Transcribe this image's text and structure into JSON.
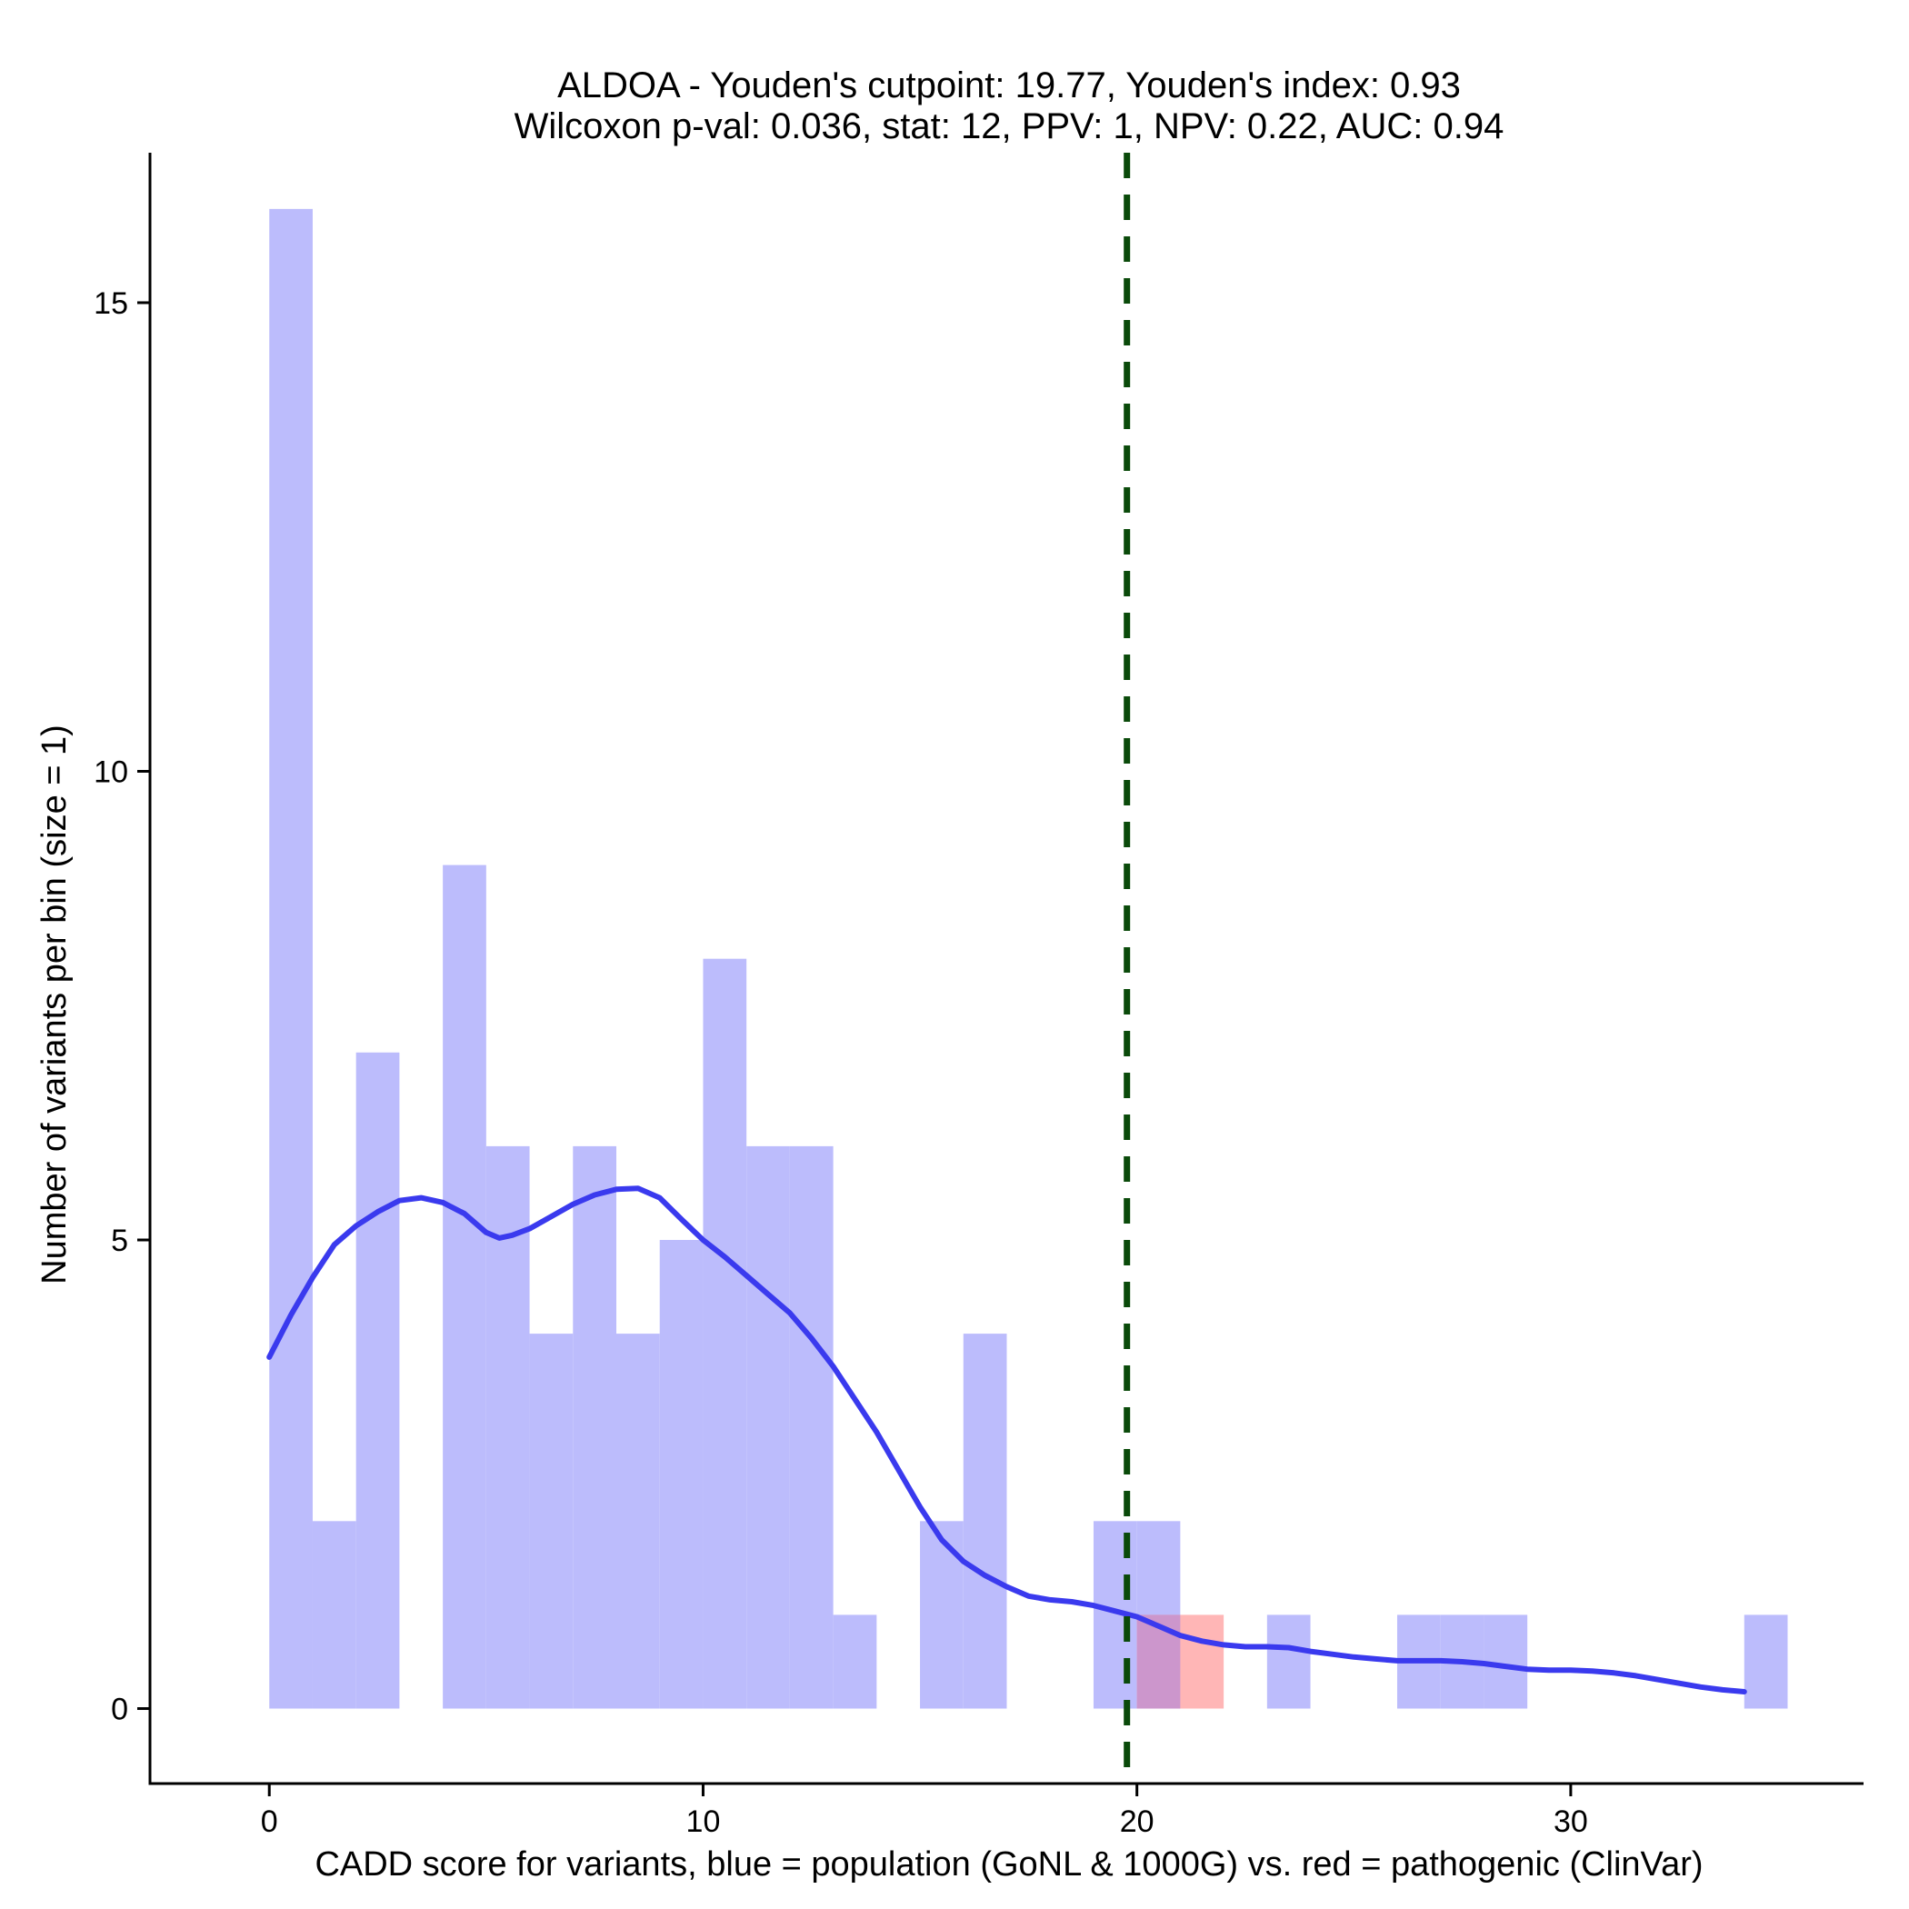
{
  "chart_data": {
    "type": "bar",
    "title_line1": "ALDOA - Youden's cutpoint: 19.77, Youden's index: 0.93",
    "title_line2": "Wilcoxon p-val: 0.036, stat: 12, PPV: 1, NPV: 0.22, AUC: 0.94",
    "xlabel": "CADD score for variants, blue = population (GoNL & 1000G) vs. red = pathogenic (ClinVar)",
    "ylabel": "Number of variants per bin (size = 1)",
    "xlim": [
      -2.75,
      36.75
    ],
    "ylim": [
      -0.8,
      16.6
    ],
    "x_ticks": [
      0,
      10,
      20,
      30
    ],
    "y_ticks": [
      0,
      5,
      10,
      15
    ],
    "bin_width": 1,
    "cutpoint": 19.77,
    "colors": {
      "population": "#bcbcfc",
      "pathogenic": "#ffb6b6",
      "overlap": "#cc96cc",
      "density": "#3a3aee",
      "cutpoint": "#0a4a0a"
    },
    "series": [
      {
        "name": "population (GoNL & 1000G)",
        "bin_starts": [
          0,
          1,
          2,
          3,
          4,
          5,
          6,
          7,
          8,
          9,
          10,
          11,
          12,
          13,
          14,
          15,
          16,
          17,
          18,
          19,
          20,
          21,
          22,
          23,
          24,
          25,
          26,
          27,
          28,
          29,
          30,
          31,
          32,
          33,
          34
        ],
        "values": [
          16,
          2,
          7,
          0,
          9,
          6,
          4,
          6,
          4,
          5,
          8,
          6,
          6,
          1,
          0,
          2,
          4,
          0,
          0,
          2,
          2,
          0,
          0,
          1,
          0,
          0,
          1,
          1,
          1,
          0,
          0,
          0,
          0,
          0,
          1
        ]
      },
      {
        "name": "pathogenic (ClinVar)",
        "bin_starts": [
          20,
          21
        ],
        "values": [
          1,
          1
        ]
      }
    ],
    "density_curve": {
      "x": [
        0,
        0.5,
        1,
        1.5,
        2,
        2.5,
        3,
        3.5,
        4,
        4.5,
        5,
        5.3,
        5.6,
        6,
        6.5,
        7,
        7.5,
        8,
        8.5,
        9,
        9.5,
        10,
        10.5,
        11,
        11.5,
        12,
        12.5,
        13,
        13.5,
        14,
        14.5,
        15,
        15.5,
        16,
        16.5,
        17,
        17.5,
        18,
        18.5,
        19,
        19.5,
        20,
        20.5,
        21,
        21.5,
        22,
        22.5,
        23,
        23.5,
        24,
        24.5,
        25,
        25.5,
        26,
        26.5,
        27,
        27.5,
        28,
        28.5,
        29,
        29.5,
        30,
        30.5,
        31,
        31.5,
        32,
        32.5,
        33,
        33.5,
        34
      ],
      "y": [
        3.75,
        4.2,
        4.6,
        4.95,
        5.15,
        5.3,
        5.42,
        5.45,
        5.4,
        5.28,
        5.08,
        5.02,
        5.05,
        5.12,
        5.25,
        5.38,
        5.48,
        5.54,
        5.55,
        5.45,
        5.22,
        5.0,
        4.82,
        4.62,
        4.42,
        4.22,
        3.95,
        3.65,
        3.3,
        2.95,
        2.55,
        2.15,
        1.8,
        1.57,
        1.42,
        1.3,
        1.2,
        1.16,
        1.14,
        1.1,
        1.04,
        0.98,
        0.88,
        0.78,
        0.72,
        0.68,
        0.66,
        0.66,
        0.65,
        0.61,
        0.58,
        0.55,
        0.53,
        0.51,
        0.51,
        0.51,
        0.5,
        0.48,
        0.45,
        0.42,
        0.41,
        0.41,
        0.4,
        0.38,
        0.35,
        0.31,
        0.27,
        0.23,
        0.2,
        0.18
      ]
    }
  }
}
